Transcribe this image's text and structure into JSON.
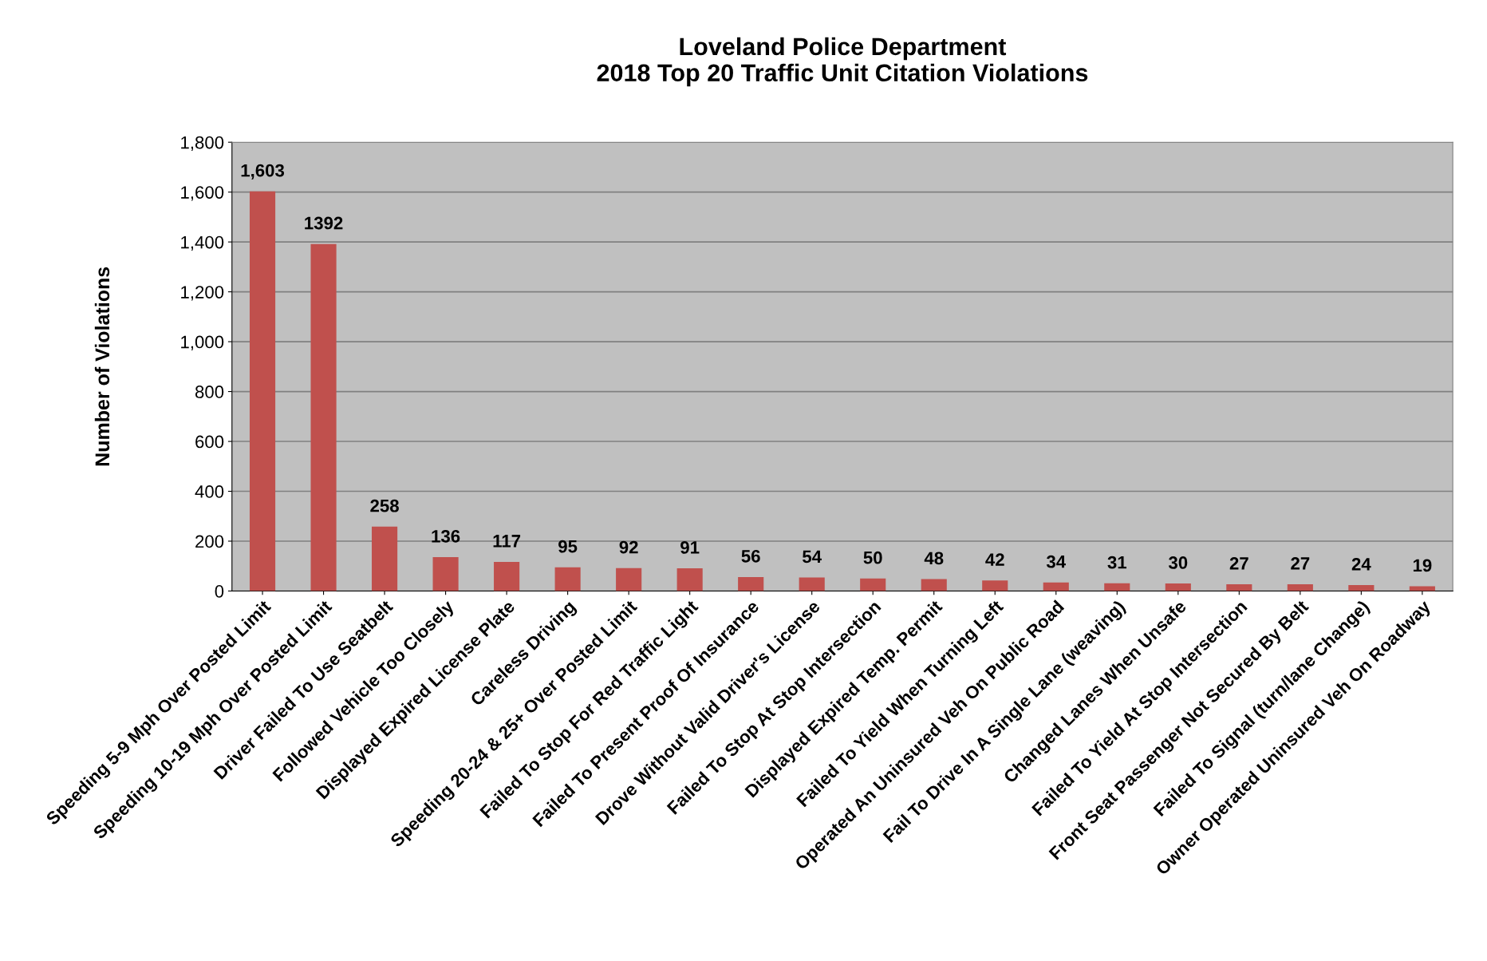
{
  "chart_data": {
    "type": "bar",
    "title": "Loveland Police Department\n2018 Top 20 Traffic Unit Citation Violations",
    "ylabel": "Number of Violations",
    "categories": [
      "Speeding 5-9 Mph Over Posted Limit",
      "Speeding 10-19 Mph Over Posted Limit",
      "Driver Failed To Use Seatbelt",
      "Followed Vehicle Too Closely",
      "Displayed Expired License Plate",
      "Careless Driving",
      "Speeding 20-24 & 25+ Over Posted Limit",
      "Failed To Stop For Red Traffic Light",
      "Failed To Present Proof Of Insurance",
      "Drove Without Valid Driver's License",
      "Failed To Stop At Stop Intersection",
      "Displayed Expired Temp. Permit",
      "Failed To Yield When Turning Left",
      "Operated An Uninsured Veh On Public Road",
      "Fail To Drive In A Single Lane (weaving)",
      "Changed Lanes When Unsafe",
      "Failed To Yield At Stop Intersection",
      "Front Seat Passenger Not Secured By Belt",
      "Failed To Signal (turn/lane Change)",
      "Owner Operated Uninsured Veh On Roadway"
    ],
    "values": [
      1603,
      1392,
      258,
      136,
      117,
      95,
      92,
      91,
      56,
      54,
      50,
      48,
      42,
      34,
      31,
      30,
      27,
      27,
      24,
      19
    ],
    "value_labels": [
      "1,603",
      "1392",
      "258",
      "136",
      "117",
      "95",
      "92",
      "91",
      "56",
      "54",
      "50",
      "48",
      "42",
      "34",
      "31",
      "30",
      "27",
      "27",
      "24",
      "19"
    ],
    "color": "#c0504d",
    "ylim": [
      0,
      1800
    ],
    "yticks": [
      {
        "value": 0,
        "label": "0"
      },
      {
        "value": 200,
        "label": "200"
      },
      {
        "value": 400,
        "label": "400"
      },
      {
        "value": 600,
        "label": "600"
      },
      {
        "value": 800,
        "label": "800"
      },
      {
        "value": 1000,
        "label": "1,000"
      },
      {
        "value": 1200,
        "label": "1,200"
      },
      {
        "value": 1400,
        "label": "1,400"
      },
      {
        "value": 1600,
        "label": "1,600"
      },
      {
        "value": 1800,
        "label": "1,800"
      }
    ],
    "grid": "y",
    "legend": false
  }
}
